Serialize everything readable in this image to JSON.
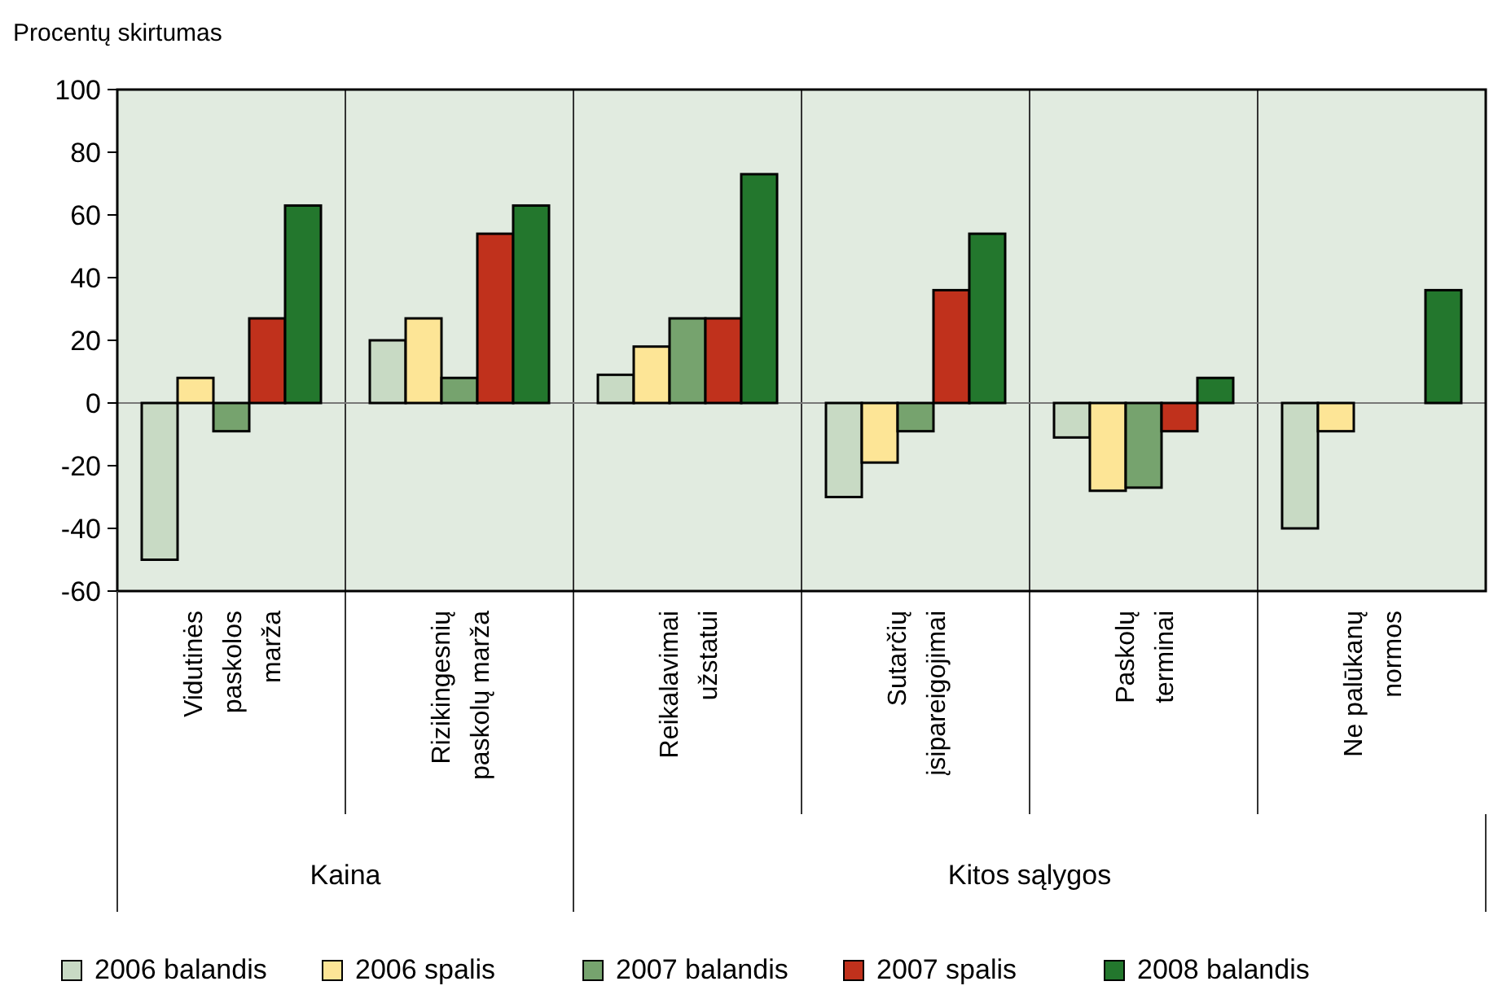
{
  "chart_data": {
    "type": "bar",
    "ylabel": "Procentų skirtumas",
    "categories": [
      "Vidutinės\npaskolos\nmarža",
      "Rizikingesnių\npaskolų marža",
      "Reikalavimai\nužstatui",
      "Sutarčių\nįsipareigojimai",
      "Paskolų\nterminai",
      "Ne palūkanų\nnormos"
    ],
    "series": [
      {
        "name": "2006 balandis",
        "color": "#c8dac4",
        "values": [
          -50,
          20,
          9,
          -30,
          -11,
          -40
        ]
      },
      {
        "name": "2006 spalis",
        "color": "#fde596",
        "values": [
          8,
          27,
          18,
          -19,
          -28,
          -9
        ]
      },
      {
        "name": "2007 balandis",
        "color": "#76a36e",
        "values": [
          -9,
          8,
          27,
          -9,
          -27,
          null
        ]
      },
      {
        "name": "2007 spalis",
        "color": "#c0311c",
        "values": [
          27,
          54,
          27,
          36,
          -9,
          null
        ]
      },
      {
        "name": "2008 balandis",
        "color": "#23772d",
        "values": [
          63,
          63,
          73,
          54,
          8,
          36
        ]
      }
    ],
    "annotations": [
      "Kaina",
      "Kitos sąlygos"
    ],
    "ylim": [
      -60,
      100
    ],
    "yticks": [
      -60,
      -40,
      -20,
      0,
      20,
      40,
      60,
      80,
      100
    ],
    "grid": false,
    "legend": "bottom"
  }
}
